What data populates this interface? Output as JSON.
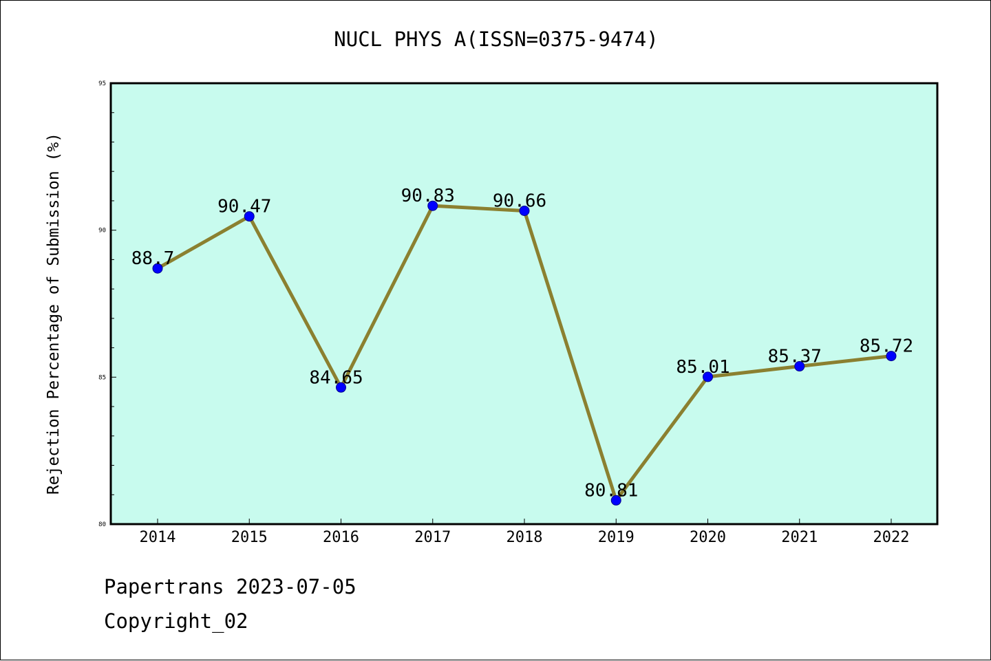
{
  "colors": {
    "plot_background": "#c8fbee",
    "line": "#8b8030",
    "marker": "#0000ff",
    "text": "#000000"
  },
  "chart_data": {
    "type": "line",
    "title": "NUCL PHYS A(ISSN=0375-9474)",
    "xlabel": "",
    "ylabel": "Rejection Percentage of Submission (%)",
    "categories": [
      "2014",
      "2015",
      "2016",
      "2017",
      "2018",
      "2019",
      "2020",
      "2021",
      "2022"
    ],
    "values": [
      88.7,
      90.47,
      84.65,
      90.83,
      90.66,
      80.81,
      85.01,
      85.37,
      85.72
    ],
    "data_labels": [
      "88.7",
      "90.47",
      "84.65",
      "90.83",
      "90.66",
      "80.81",
      "85.01",
      "85.37",
      "85.72"
    ],
    "ylim": [
      80,
      95
    ],
    "yticks": [
      "80",
      "85",
      "90",
      "95"
    ],
    "grid": false,
    "legend": "none"
  },
  "footer": {
    "date_line": "Papertrans 2023-07-05",
    "copyright_line": "Copyright_02"
  }
}
